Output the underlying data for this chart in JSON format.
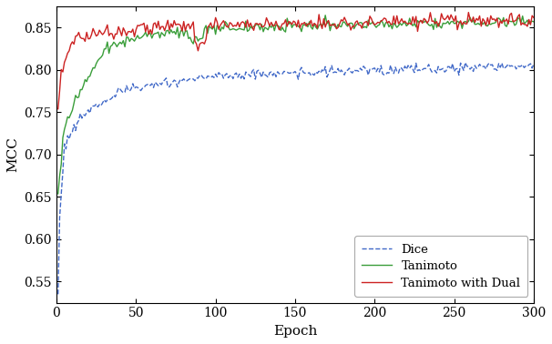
{
  "title": "",
  "xlabel": "Epoch",
  "ylabel": "MCC",
  "xlim": [
    0,
    300
  ],
  "ylim": [
    0.525,
    0.875
  ],
  "yticks": [
    0.55,
    0.6,
    0.65,
    0.7,
    0.75,
    0.8,
    0.85
  ],
  "xticks": [
    0,
    50,
    100,
    150,
    200,
    250,
    300
  ],
  "legend_labels": [
    "Dice",
    "Tanimoto",
    "Tanimoto with Dual"
  ],
  "dice_color": "#4169c8",
  "tanimoto_color": "#3a9e3a",
  "tanimoto_dual_color": "#cc2222",
  "background_color": "#ffffff",
  "figsize": [
    6.06,
    3.78
  ],
  "dpi": 100
}
